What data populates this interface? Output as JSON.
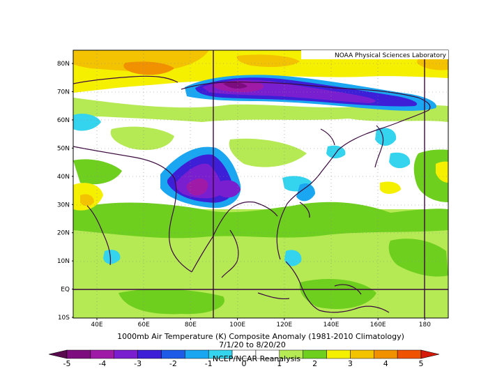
{
  "map": {
    "credit": "NOAA Physical Sciences Laboratory",
    "title": "1000mb Air Temperature (K) Composite Anomaly (1981-2010 Climatology)",
    "dates": "7/1/20  to 8/20/20",
    "source": "NCEP/NCAR Reanalysis",
    "lat_ticks": [
      "80N",
      "70N",
      "60N",
      "50N",
      "40N",
      "30N",
      "20N",
      "10N",
      "EQ",
      "10S"
    ],
    "lon_ticks": [
      "40E",
      "60E",
      "80E",
      "100E",
      "120E",
      "140E",
      "160E",
      "180"
    ],
    "lon_range": [
      30,
      190
    ],
    "lat_range": [
      -10,
      85
    ]
  },
  "colorbar": {
    "labels": [
      "-5",
      "-4",
      "-3",
      "-2",
      "-1",
      "0",
      "1",
      "2",
      "3",
      "4",
      "5"
    ],
    "colors": [
      "#5a0a4e",
      "#7d0d7f",
      "#a01aa8",
      "#7a1fd0",
      "#3c1fd6",
      "#1e5be6",
      "#1aa6f0",
      "#35d4ee",
      "#ffffff",
      "#ffffff",
      "#b6ea55",
      "#6ecf1e",
      "#f5f000",
      "#f3c200",
      "#f19100",
      "#ef5200",
      "#d5190b"
    ]
  }
}
